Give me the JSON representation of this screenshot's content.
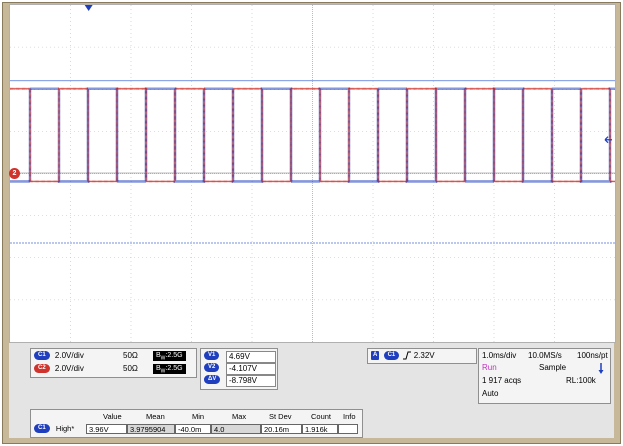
{
  "channels": {
    "ch1": {
      "chip": "C1",
      "scale": "2.0V/div",
      "impedance": "50Ω",
      "bandwidth": "2.5G",
      "color": "#1f3fbf"
    },
    "ch2": {
      "chip": "C2",
      "scale": "2.0V/div",
      "impedance": "50Ω",
      "bandwidth": "2.5G",
      "color": "#d0322c"
    }
  },
  "waveform": {
    "ch2_marker": "2",
    "high_level_v": 4.0,
    "low_level_v": -0.4,
    "volts_per_div": 2.0,
    "num_transitions": 20
  },
  "cursors": {
    "v1_label": "V1",
    "v1": "4.69V",
    "v2_label": "V2",
    "v2": "-4.107V",
    "dv_label": "ΔV",
    "dv": "-8.798V"
  },
  "trigger": {
    "mode_chip": "A",
    "source_chip": "C1",
    "level": "2.32V"
  },
  "acquisition": {
    "timebase": "1.0ms/div",
    "sample_rate": "10.0MS/s",
    "resolution": "100ns/pt",
    "state": "Run",
    "mode": "Sample",
    "acqs": "1 917 acqs",
    "record_length": "RL:100k",
    "trigger_mode": "Auto"
  },
  "measurements": {
    "headers": [
      "Value",
      "Mean",
      "Min",
      "Max",
      "St Dev",
      "Count",
      "Info"
    ],
    "row": {
      "chip": "C1",
      "name": "High*",
      "value": "3.96V",
      "mean": "3.9795904",
      "min": "-40.0m",
      "max": "4.0",
      "stdev": "20.16m",
      "count": "1.916k",
      "info": ""
    }
  }
}
